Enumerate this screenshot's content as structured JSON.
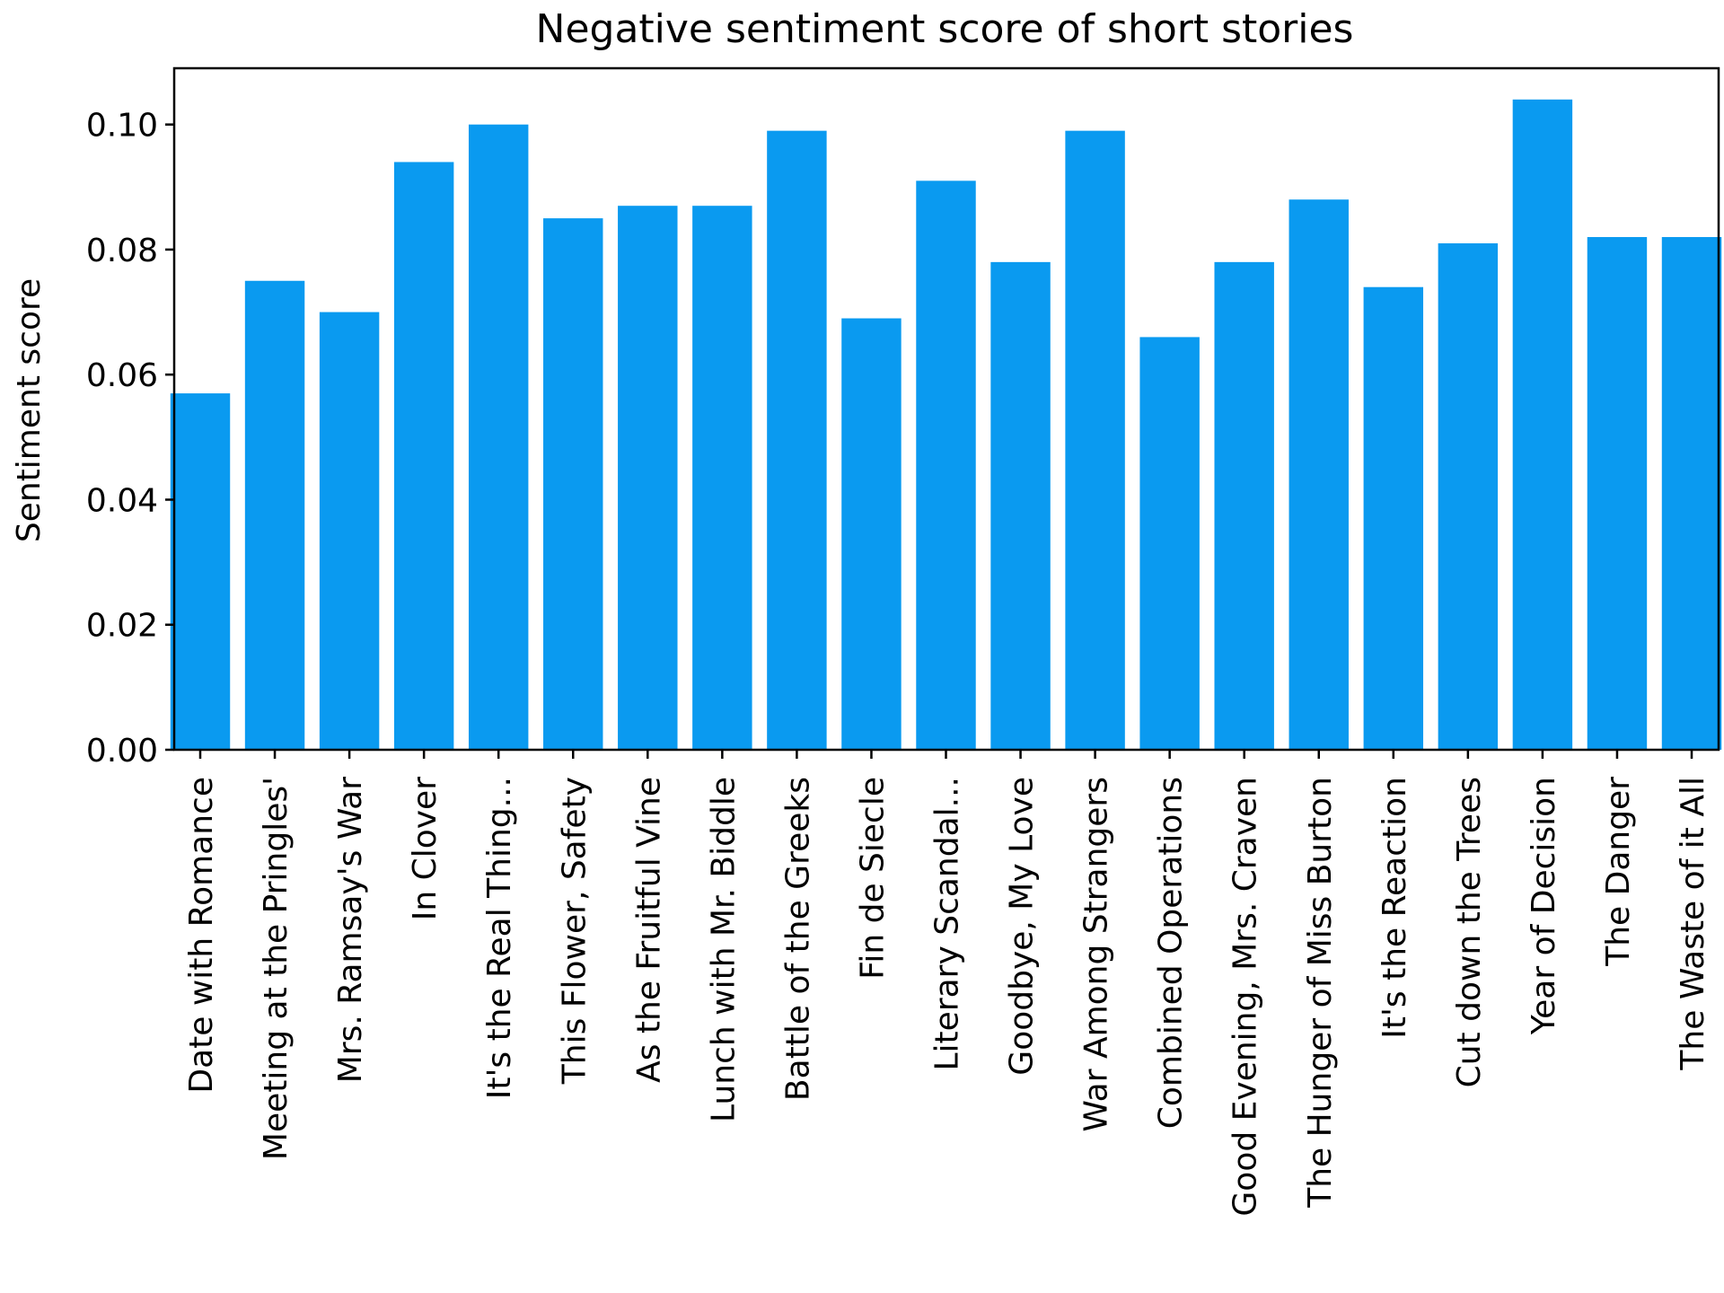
{
  "chart_data": {
    "type": "bar",
    "title": "Negative sentiment score of short stories",
    "xlabel": "",
    "ylabel": "Sentiment score",
    "ylim": [
      0,
      0.109
    ],
    "yticks": [
      "0.00",
      "0.02",
      "0.04",
      "0.06",
      "0.08",
      "0.10"
    ],
    "ytick_values": [
      0,
      0.02,
      0.04,
      0.06,
      0.08,
      0.1
    ],
    "grid": false,
    "bar_color": "#0a9af0",
    "categories": [
      "Date with Romance",
      "Meeting at the Pringles'",
      "Mrs. Ramsay's War",
      "In Clover",
      "It's the Real Thing...",
      "This Flower, Safety",
      "As the Fruitful Vine",
      "Lunch with Mr. Biddle",
      "Battle of the Greeks",
      "Fin de Siecle",
      "Literary Scandal...",
      "Goodbye, My Love",
      "War Among Strangers",
      "Combined Operations",
      "Good Evening, Mrs. Craven",
      "The Hunger of Miss Burton",
      "It's the Reaction",
      "Cut down the Trees",
      "Year of Decision",
      "The Danger",
      "The Waste of it All"
    ],
    "values": [
      0.057,
      0.075,
      0.07,
      0.094,
      0.1,
      0.085,
      0.087,
      0.087,
      0.099,
      0.069,
      0.091,
      0.078,
      0.099,
      0.066,
      0.078,
      0.088,
      0.074,
      0.081,
      0.104,
      0.082,
      0.082
    ]
  }
}
